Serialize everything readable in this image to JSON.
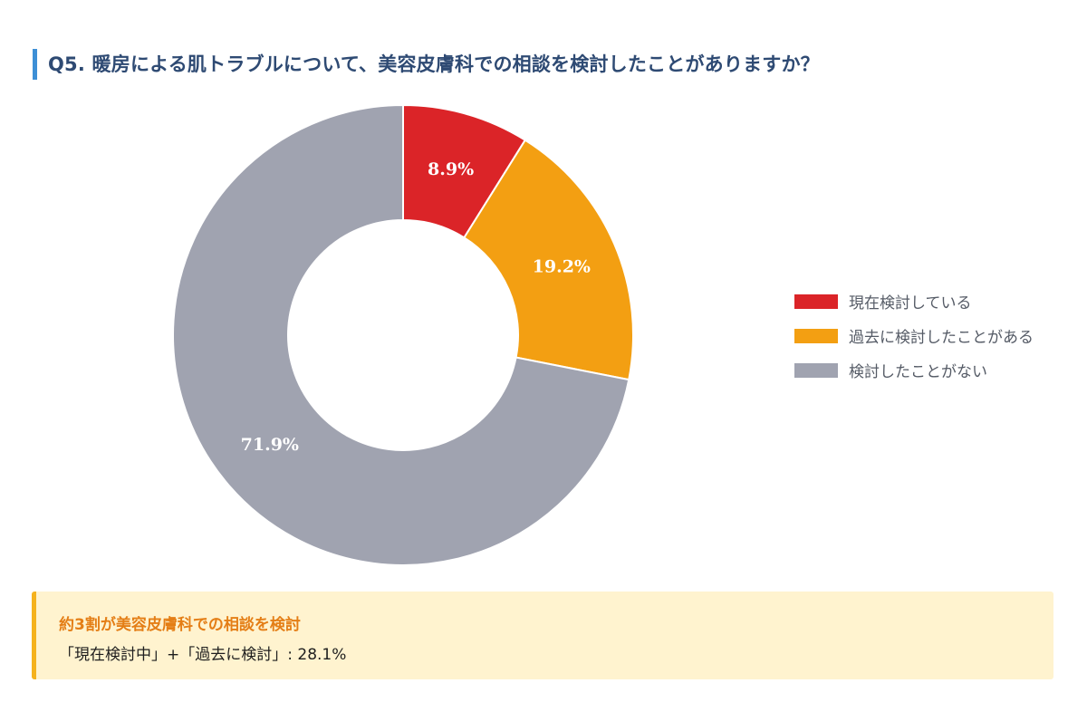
{
  "title": "Q5. 暖房による肌トラブルについて、美容皮膚科での相談を検討したことがありますか？",
  "chart_data": {
    "type": "pie",
    "style": "donut",
    "title": "Q5. 暖房による肌トラブルについて、美容皮膚科での相談を検討したことがありますか？",
    "categories": [
      "現在検討している",
      "過去に検討したことがある",
      "検討したことがない"
    ],
    "values": [
      8.9,
      19.2,
      71.9
    ],
    "value_labels": [
      "8.9%",
      "19.2%",
      "71.9%"
    ],
    "colors": [
      "#db2428",
      "#f39f12",
      "#a0a3b0"
    ],
    "legend_position": "right"
  },
  "callout": {
    "heading": "約3割が美容皮膚科での相談を検討",
    "text": "「現在検討中」+「過去に検討」: 28.1%"
  }
}
